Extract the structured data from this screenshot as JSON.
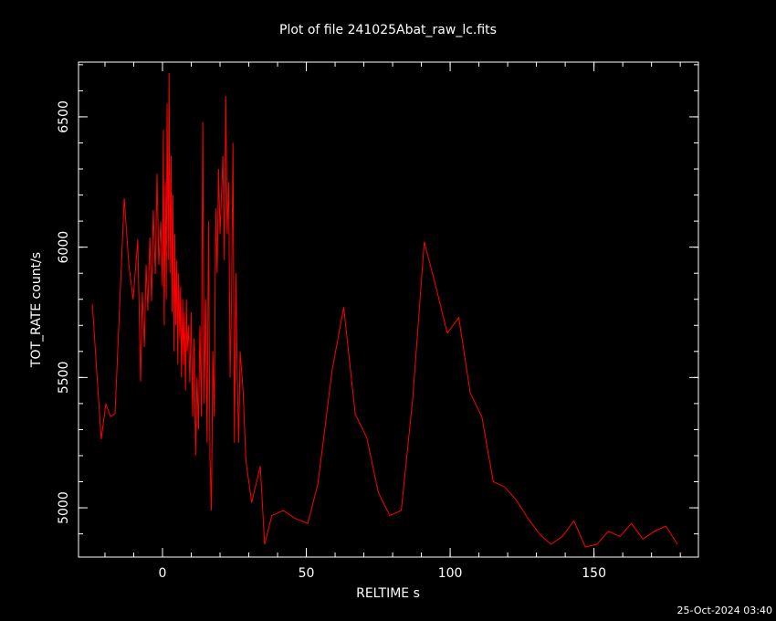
{
  "chart_data": {
    "type": "line",
    "title": "Plot of file 241025Abat_raw_lc.fits",
    "x_label": "RELTIME  s",
    "y_label": "TOT_RATE  count/s",
    "timestamp": "25-Oct-2024 03:40",
    "xlim": [
      -29.2,
      186.3
    ],
    "ylim": [
      4811,
      6710
    ],
    "xticks": [
      0,
      50,
      100,
      150
    ],
    "yticks": [
      5000,
      5500,
      6000,
      6500
    ],
    "minor_ticks": 5,
    "x": [
      -24.4,
      -21.3,
      -19.7,
      -18.1,
      -16.5,
      -13.3,
      -11.7,
      -10.2,
      -8.6,
      -7.6,
      -7.0,
      -6.3,
      -5.7,
      -5.1,
      -4.4,
      -3.8,
      -3.2,
      -2.5,
      -1.9,
      -1.3,
      -0.6,
      0,
      0.3,
      0.6,
      1.0,
      1.3,
      1.6,
      2.0,
      2.3,
      2.6,
      3.0,
      3.3,
      3.6,
      4.0,
      4.3,
      4.6,
      5.0,
      5.3,
      5.6,
      6.0,
      6.3,
      6.6,
      7.0,
      7.3,
      7.6,
      8.0,
      8.3,
      8.6,
      9.0,
      9.5,
      10.0,
      10.5,
      11.0,
      11.5,
      12.0,
      12.5,
      13.0,
      13.5,
      14.0,
      14.5,
      15.0,
      15.5,
      16.0,
      16.5,
      17.0,
      17.5,
      18.0,
      18.5,
      19.0,
      19.5,
      20.0,
      20.5,
      21.0,
      21.5,
      22.0,
      22.5,
      23.0,
      23.5,
      24.0,
      24.5,
      25.0,
      25.5,
      26.0,
      26.5,
      27.0,
      28.0,
      29.0,
      31,
      34,
      35.5,
      38,
      42,
      46,
      50.5,
      54,
      59,
      63,
      67,
      71,
      75,
      79,
      83,
      87,
      91,
      95,
      99,
      103,
      107,
      111,
      115,
      119,
      123,
      127,
      131,
      135,
      139,
      143,
      147,
      151,
      155,
      159,
      163,
      167,
      171,
      175,
      179
    ],
    "series": [
      {
        "color": "#ff0000",
        "values": [
          5781,
          5263,
          5399,
          5350,
          5361,
          6188,
          5932,
          5799,
          6030,
          5484,
          5827,
          5617,
          5932,
          5757,
          6037,
          5792,
          6142,
          5897,
          6282,
          5932,
          6100,
          5850,
          6450,
          5700,
          6250,
          5800,
          6550,
          5950,
          6668,
          5900,
          6350,
          5750,
          6200,
          5600,
          6050,
          5700,
          5950,
          5550,
          5900,
          5650,
          5850,
          5500,
          5800,
          5550,
          5750,
          5450,
          5800,
          5600,
          5700,
          5480,
          5750,
          5350,
          5650,
          5200,
          5500,
          5300,
          5700,
          5350,
          6480,
          5400,
          5800,
          5250,
          6100,
          5200,
          4990,
          5600,
          5350,
          6150,
          5900,
          6300,
          6050,
          6200,
          6350,
          5950,
          6580,
          6050,
          6250,
          5500,
          5800,
          6400,
          5250,
          5900,
          5500,
          5250,
          5600,
          5450,
          5180,
          5020,
          5160,
          4860,
          4970,
          4990,
          4960,
          4940,
          5090,
          5530,
          5770,
          5360,
          5270,
          5060,
          4970,
          4990,
          5420,
          6020,
          5850,
          5670,
          5730,
          5440,
          5350,
          5100,
          5080,
          5030,
          4960,
          4900,
          4860,
          4890,
          4950,
          4850,
          4860,
          4910,
          4890,
          4940,
          4880,
          4910,
          4930,
          4860
        ]
      }
    ]
  }
}
